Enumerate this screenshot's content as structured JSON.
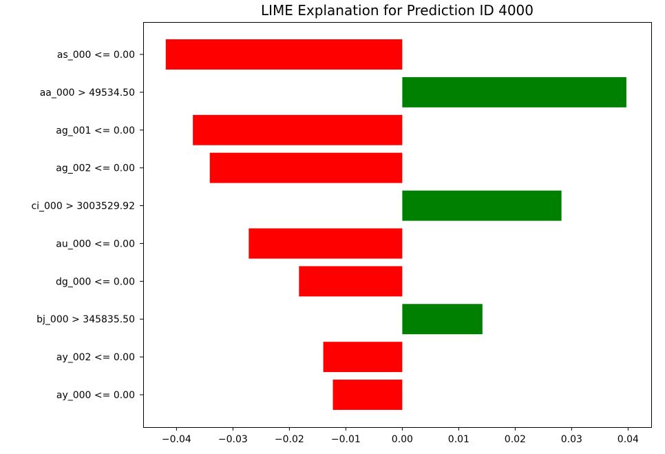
{
  "chart_data": {
    "type": "bar",
    "orientation": "horizontal",
    "title": "LIME Explanation for Prediction ID 4000",
    "xlabel": "",
    "ylabel": "",
    "xlim": [
      -0.0459,
      0.0441
    ],
    "grid": false,
    "legend": "none",
    "categories": [
      "as_000 <= 0.00",
      "aa_000 > 49534.50",
      "ag_001 <= 0.00",
      "ag_002 <= 0.00",
      "ci_000 > 3003529.92",
      "au_000 <= 0.00",
      "dg_000 <= 0.00",
      "bj_000 > 345835.50",
      "ay_002 <= 0.00",
      "ay_000 <= 0.00"
    ],
    "values": [
      -0.0419,
      0.0397,
      -0.0371,
      -0.0341,
      0.0282,
      -0.0272,
      -0.0183,
      0.0142,
      -0.014,
      -0.0123
    ],
    "x_ticks": [
      -0.04,
      -0.03,
      -0.02,
      -0.01,
      0.0,
      0.01,
      0.02,
      0.03,
      0.04
    ],
    "x_tick_labels": [
      "−0.04",
      "−0.03",
      "−0.02",
      "−0.01",
      "0.00",
      "0.01",
      "0.02",
      "0.03",
      "0.04"
    ],
    "colors": {
      "positive": "#008000",
      "negative": "#ff0000"
    }
  }
}
